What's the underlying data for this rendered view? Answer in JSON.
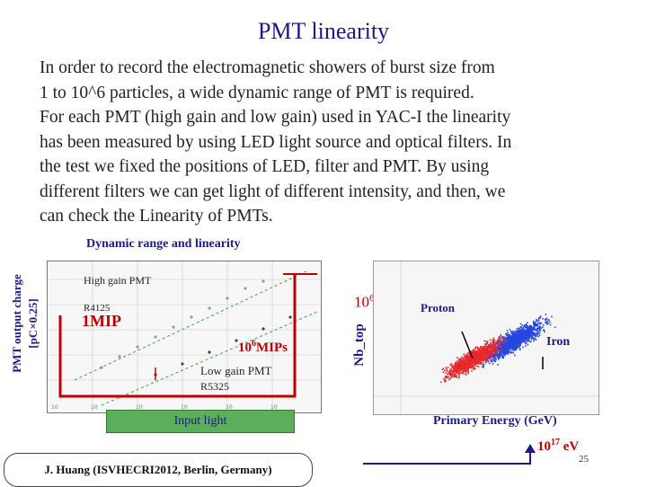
{
  "slide": {
    "title": "PMT linearity",
    "paragraph": [
      "In order to record the electromagnetic showers of  burst size from",
      "1 to 10^6 particles,  a wide dynamic range of PMT is required.",
      "For each PMT (high gain and low gain) used in YAC-I the linearity",
      "has been measured by using LED light source and optical filters. In",
      "the test we fixed the positions of LED, filter and PMT. By using",
      "different filters we can get light of different intensity, and then, we",
      "can check  the Linearity of PMTs."
    ],
    "section_heading": "Dynamic range and linearity",
    "citation": "J. Huang  (ISVHECRI2012,  Berlin,  Germany)",
    "page_number": "25"
  },
  "left_figure": {
    "y_axis_label_line1": "PMT output charge",
    "y_axis_label_line2": "[pC×0.25]",
    "high_gain_label": "High gain PMT",
    "model_high": "R4125",
    "marker_1mip": "1MIP",
    "marker_1e6_base": "10",
    "marker_1e6_exp": "6",
    "marker_1e6_unit": "MIPs",
    "low_gain_label": "Low gain PMT",
    "model_low": "R5325",
    "x_axis_box_label": "Input light",
    "side_label_base": "10",
    "side_label_exp": "6"
  },
  "right_figure": {
    "y_axis_label": "Nb_top",
    "proton_label": "Proton",
    "iron_label": "Iron",
    "x_axis_label": "Primary Energy (GeV)",
    "energy_base": "10",
    "energy_exp": "17",
    "energy_unit": " eV"
  },
  "colors": {
    "title": "#1a1a8c",
    "accent_red": "#c00000",
    "green_box": "#5cae5c",
    "proton_red": "#e8282a",
    "iron_blue": "#2646e0"
  }
}
